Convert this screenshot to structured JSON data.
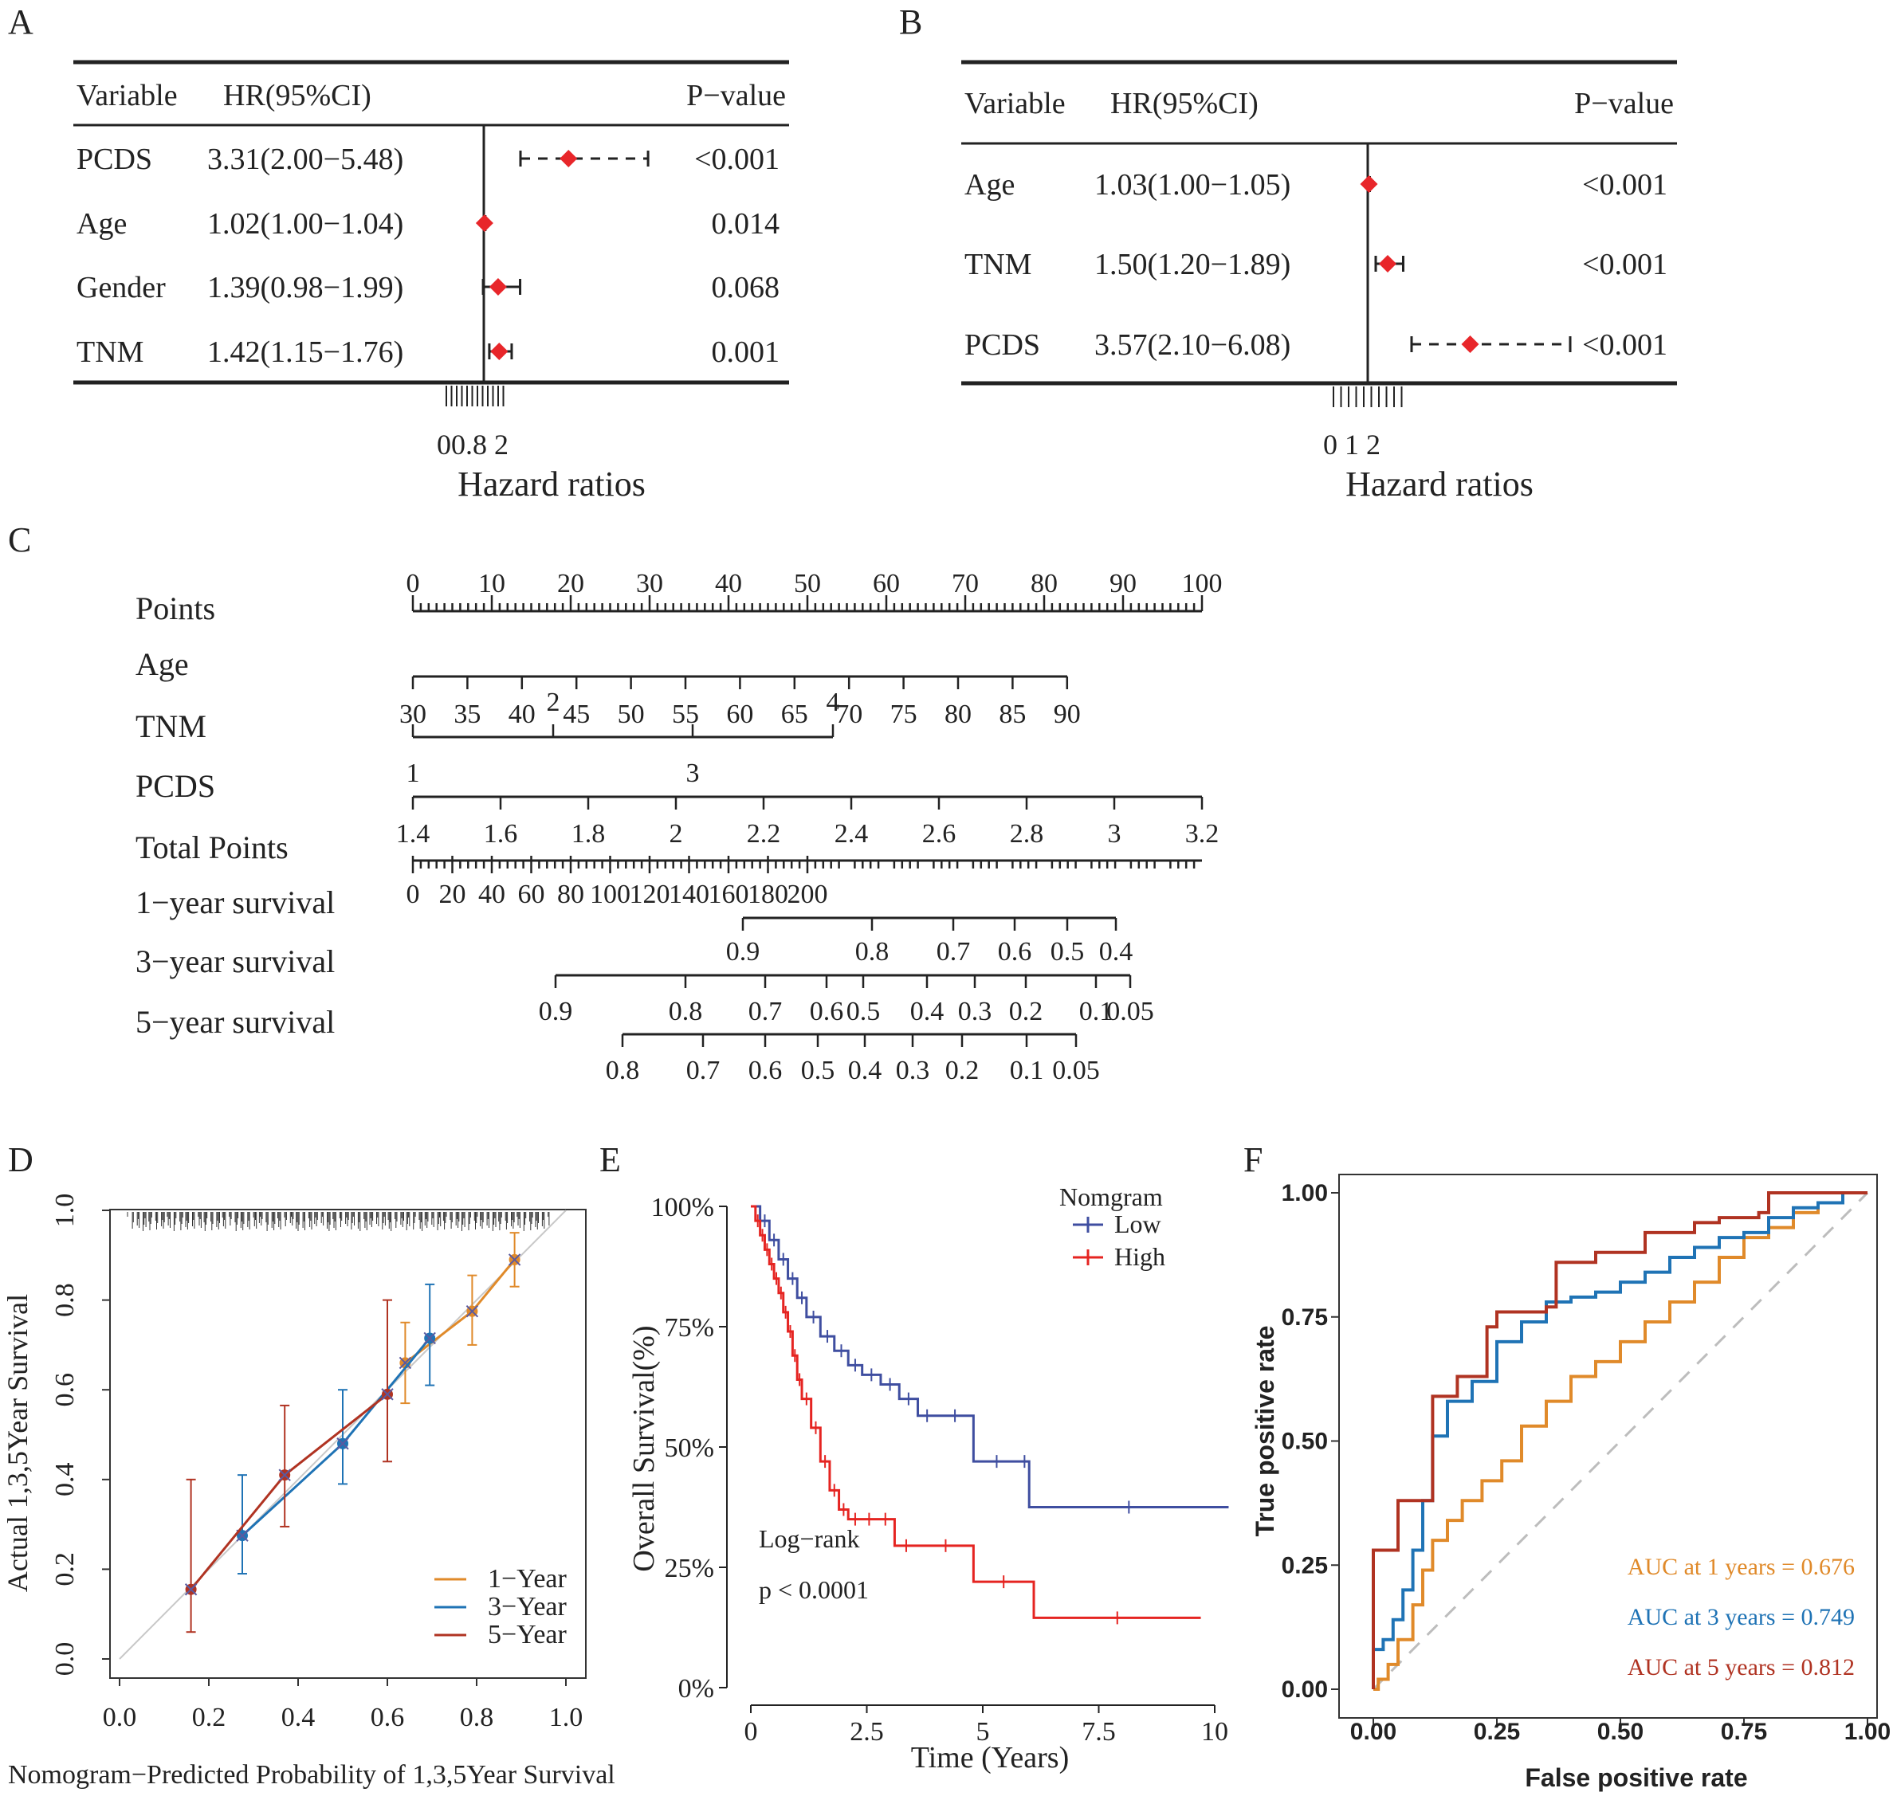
{
  "colors": {
    "marker": "#e8262a",
    "low": "#3f4ea0",
    "high": "#e52421",
    "y1": "#e08a2a",
    "y3": "#1f73b5",
    "y5": "#b03322"
  },
  "chart_data": [
    {
      "panel": "A",
      "type": "forest",
      "headers": {
        "variable": "Variable",
        "hr": "HR(95%CI)",
        "p": "P−value"
      },
      "rows": [
        {
          "label": "PCDS",
          "hr_text": "3.31(2.00−5.48)",
          "p": "<0.001",
          "hr": 3.31,
          "lo": 2.0,
          "hi": 5.48
        },
        {
          "label": "Age",
          "hr_text": "1.02(1.00−1.04)",
          "p": "0.014",
          "hr": 1.02,
          "lo": 1.0,
          "hi": 1.04
        },
        {
          "label": "Gender",
          "hr_text": "1.39(0.98−1.99)",
          "p": "0.068",
          "hr": 1.39,
          "lo": 0.98,
          "hi": 1.99
        },
        {
          "label": "TNM",
          "hr_text": "1.42(1.15−1.76)",
          "p": "0.001",
          "hr": 1.42,
          "lo": 1.15,
          "hi": 1.76
        }
      ],
      "xlabel": "Hazard ratios",
      "ticks": [
        "0",
        "0.8",
        "2"
      ]
    },
    {
      "panel": "B",
      "type": "forest",
      "headers": {
        "variable": "Variable",
        "hr": "HR(95%CI)",
        "p": "P−value"
      },
      "rows": [
        {
          "label": "Age",
          "hr_text": "1.03(1.00−1.05)",
          "p": "<0.001",
          "hr": 1.03,
          "lo": 1.0,
          "hi": 1.05
        },
        {
          "label": "TNM",
          "hr_text": "1.50(1.20−1.89)",
          "p": "<0.001",
          "hr": 1.5,
          "lo": 1.2,
          "hi": 1.89
        },
        {
          "label": "PCDS",
          "hr_text": "3.57(2.10−6.08)",
          "p": "<0.001",
          "hr": 3.57,
          "lo": 2.1,
          "hi": 6.08
        }
      ],
      "xlabel": "Hazard ratios",
      "ticks": [
        "0",
        "1",
        "2"
      ]
    },
    {
      "panel": "C",
      "type": "nomogram",
      "rows": [
        {
          "label": "Points",
          "ticks": [
            "0",
            "10",
            "20",
            "30",
            "40",
            "50",
            "60",
            "70",
            "80",
            "90",
            "100"
          ]
        },
        {
          "label": "Age",
          "ticks": [
            "30",
            "35",
            "40",
            "45",
            "50",
            "55",
            "60",
            "65",
            "70",
            "75",
            "80",
            "85",
            "90"
          ]
        },
        {
          "label": "TNM",
          "ticks": [
            "1",
            "2",
            "3",
            "4"
          ]
        },
        {
          "label": "PCDS",
          "ticks": [
            "1.4",
            "1.6",
            "1.8",
            "2",
            "2.2",
            "2.4",
            "2.6",
            "2.8",
            "3",
            "3.2"
          ]
        },
        {
          "label": "Total Points",
          "ticks": [
            "0",
            "20",
            "40",
            "60",
            "80",
            "100",
            "120",
            "140",
            "160",
            "180",
            "200"
          ]
        },
        {
          "label": "1−year survival",
          "ticks": [
            "0.9",
            "0.8",
            "0.7",
            "0.6",
            "0.5",
            "0.4"
          ]
        },
        {
          "label": "3−year survival",
          "ticks": [
            "0.9",
            "0.8",
            "0.7",
            "0.6",
            "0.5",
            "0.4",
            "0.3",
            "0.2",
            "0.1",
            "0.05"
          ]
        },
        {
          "label": "5−year survival",
          "ticks": [
            "0.8",
            "0.7",
            "0.6",
            "0.5",
            "0.4",
            "0.3",
            "0.2",
            "0.1",
            "0.05"
          ]
        }
      ]
    },
    {
      "panel": "D",
      "type": "line",
      "title": "",
      "xlabel": "Nomogram−Predicted Probability of 1,3,5Year Survival",
      "ylabel": "Actual 1,3,5Year Survival",
      "xlim": [
        0,
        1
      ],
      "ylim": [
        0,
        1
      ],
      "xticks": [
        "0.0",
        "0.2",
        "0.4",
        "0.6",
        "0.8",
        "1.0"
      ],
      "yticks": [
        "0.0",
        "0.2",
        "0.4",
        "0.6",
        "0.8",
        "1.0"
      ],
      "legend": [
        "1−Year",
        "3−Year",
        "5−Year"
      ],
      "series": [
        {
          "name": "1−Year",
          "x": [
            0.64,
            0.79,
            0.885
          ],
          "y": [
            0.66,
            0.775,
            0.89
          ],
          "lo": [
            0.57,
            0.7,
            0.83
          ],
          "hi": [
            0.75,
            0.855,
            0.95
          ]
        },
        {
          "name": "3−Year",
          "x": [
            0.275,
            0.5,
            0.695
          ],
          "y": [
            0.275,
            0.48,
            0.715
          ],
          "lo": [
            0.19,
            0.39,
            0.61
          ],
          "hi": [
            0.41,
            0.6,
            0.835
          ]
        },
        {
          "name": "5−Year",
          "x": [
            0.16,
            0.37,
            0.6
          ],
          "y": [
            0.155,
            0.41,
            0.59
          ],
          "lo": [
            0.06,
            0.295,
            0.44
          ],
          "hi": [
            0.4,
            0.565,
            0.8
          ]
        }
      ]
    },
    {
      "panel": "E",
      "type": "line",
      "xlabel": "Time (Years)",
      "ylabel": "Overall Survival(%)",
      "xlim": [
        0,
        10.5
      ],
      "ylim": [
        0,
        1
      ],
      "xticks": [
        "0",
        "2.5",
        "5",
        "7.5",
        "10"
      ],
      "yticks": [
        "0%",
        "25%",
        "50%",
        "75%",
        "100%"
      ],
      "legend_title": "Nomgram",
      "annotation": [
        "Log−rank",
        "p < 0.0001"
      ],
      "series": [
        {
          "name": "Low",
          "x": [
            0,
            0.2,
            0.4,
            0.6,
            0.8,
            1.0,
            1.2,
            1.5,
            1.8,
            2.1,
            2.4,
            2.8,
            3.2,
            3.6,
            4.0,
            4.8,
            5.8,
            6.0,
            10.3
          ],
          "y": [
            1,
            0.97,
            0.93,
            0.89,
            0.85,
            0.81,
            0.77,
            0.73,
            0.7,
            0.67,
            0.65,
            0.63,
            0.6,
            0.565,
            0.565,
            0.47,
            0.47,
            0.375,
            0.375
          ]
        },
        {
          "name": "High",
          "x": [
            0,
            0.1,
            0.2,
            0.3,
            0.4,
            0.5,
            0.6,
            0.7,
            0.8,
            0.9,
            1.0,
            1.1,
            1.3,
            1.5,
            1.7,
            1.9,
            2.1,
            2.4,
            2.7,
            3.1,
            3.6,
            4.8,
            6.1,
            9.7
          ],
          "y": [
            1,
            0.97,
            0.94,
            0.91,
            0.88,
            0.85,
            0.82,
            0.78,
            0.74,
            0.69,
            0.64,
            0.6,
            0.54,
            0.47,
            0.41,
            0.37,
            0.35,
            0.35,
            0.35,
            0.295,
            0.295,
            0.22,
            0.145,
            0.145
          ]
        }
      ]
    },
    {
      "panel": "F",
      "type": "line",
      "xlabel": "False positive rate",
      "ylabel": "True positive rate",
      "xlim": [
        0,
        1
      ],
      "ylim": [
        0,
        1
      ],
      "xticks": [
        "0.00",
        "0.25",
        "0.50",
        "0.75",
        "1.00"
      ],
      "yticks": [
        "0.00",
        "0.25",
        "0.50",
        "0.75",
        "1.00"
      ],
      "annotations": [
        "AUC at 1 years = 0.676",
        "AUC at 3 years = 0.749",
        "AUC at 5 years = 0.812"
      ],
      "series": [
        {
          "name": "AUC at 1 years = 0.676",
          "x": [
            0,
            0.01,
            0.03,
            0.05,
            0.08,
            0.1,
            0.12,
            0.15,
            0.18,
            0.22,
            0.26,
            0.3,
            0.35,
            0.4,
            0.45,
            0.5,
            0.55,
            0.6,
            0.65,
            0.7,
            0.75,
            0.8,
            0.85,
            0.9,
            0.95,
            1.0
          ],
          "y": [
            0,
            0.02,
            0.05,
            0.1,
            0.17,
            0.24,
            0.3,
            0.34,
            0.38,
            0.42,
            0.46,
            0.53,
            0.58,
            0.63,
            0.66,
            0.7,
            0.74,
            0.78,
            0.82,
            0.87,
            0.91,
            0.93,
            0.96,
            0.98,
            1.0,
            1.0
          ]
        },
        {
          "name": "AUC at 3 years = 0.749",
          "x": [
            0,
            0.02,
            0.04,
            0.06,
            0.08,
            0.1,
            0.12,
            0.15,
            0.2,
            0.25,
            0.3,
            0.35,
            0.4,
            0.45,
            0.5,
            0.55,
            0.6,
            0.65,
            0.7,
            0.75,
            0.8,
            0.85,
            0.9,
            0.95,
            1.0
          ],
          "y": [
            0.08,
            0.1,
            0.14,
            0.2,
            0.28,
            0.38,
            0.51,
            0.58,
            0.62,
            0.7,
            0.74,
            0.78,
            0.79,
            0.8,
            0.82,
            0.84,
            0.87,
            0.89,
            0.91,
            0.92,
            0.95,
            0.97,
            0.98,
            1.0,
            1.0
          ]
        },
        {
          "name": "AUC at 5 years = 0.812",
          "x": [
            0,
            0.05,
            0.1,
            0.12,
            0.17,
            0.23,
            0.25,
            0.35,
            0.37,
            0.45,
            0.55,
            0.65,
            0.7,
            0.78,
            0.8,
            1.0
          ],
          "y": [
            0.28,
            0.38,
            0.38,
            0.59,
            0.63,
            0.73,
            0.76,
            0.77,
            0.86,
            0.88,
            0.92,
            0.94,
            0.95,
            0.96,
            1.0,
            1.0
          ]
        }
      ]
    }
  ]
}
